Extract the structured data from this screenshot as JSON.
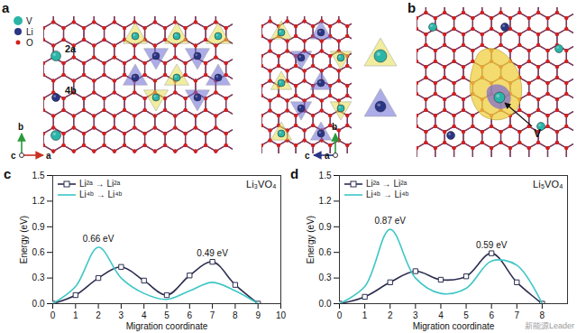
{
  "figure": {
    "panel_a": {
      "label": "a",
      "legend": [
        {
          "text": "V",
          "color": "#2bb5a8"
        },
        {
          "text": "Li",
          "color": "#2a3585"
        },
        {
          "text": "O",
          "color": "#d42020"
        }
      ],
      "site_labels": [
        "2a",
        "4b"
      ],
      "axes_left": {
        "up": "b",
        "side": "a",
        "out": "c"
      },
      "axes_middle": {
        "up": "b",
        "side": "c",
        "out": "a"
      }
    },
    "panel_b": {
      "label": "b",
      "atom_label": "V"
    },
    "watermark": "新能源Leader"
  },
  "chart_data": [
    {
      "type": "line",
      "panel": "c",
      "title": "Li₃VO₄",
      "x_label": "Migration coordinate",
      "y_label": "Energy (eV)",
      "x": [
        0,
        1,
        2,
        3,
        4,
        5,
        6,
        7,
        8,
        9
      ],
      "xlim": [
        0,
        10
      ],
      "xticks": [
        0,
        1,
        2,
        3,
        4,
        5,
        6,
        7,
        8,
        9,
        10
      ],
      "ylim": [
        0,
        1.5
      ],
      "yticks": [
        {
          "value": 0,
          "label": "0.0"
        },
        0.3,
        0.6,
        0.9,
        1.2,
        1.5
      ],
      "legend": "top-left",
      "series": [
        {
          "name": "Li²ᵃ → Li²ᵃ",
          "color": "#2b2d4f",
          "marker": "square",
          "values": [
            0,
            0.1,
            0.3,
            0.43,
            0.27,
            0.1,
            0.33,
            0.49,
            0.22,
            0
          ]
        },
        {
          "name": "Li⁴ᵇ → Li⁴ᵇ",
          "color": "#3ec6c6",
          "marker": "none",
          "values": [
            0,
            0.2,
            0.66,
            0.3,
            0.12,
            0.05,
            0.15,
            0.25,
            0.15,
            0
          ]
        }
      ],
      "annotations": [
        {
          "x": 2,
          "y": 0.66,
          "text": "0.66 eV"
        },
        {
          "x": 7,
          "y": 0.49,
          "text": "0.49 eV"
        }
      ]
    },
    {
      "type": "line",
      "panel": "d",
      "title": "Li₅VO₄",
      "x_label": "Migration coordinate",
      "y_label": "Energy (eV)",
      "x": [
        0,
        1,
        2,
        3,
        4,
        5,
        6,
        7,
        8
      ],
      "xlim": [
        0,
        9
      ],
      "xticks": [
        0,
        1,
        2,
        3,
        4,
        5,
        6,
        7,
        8
      ],
      "ylim": [
        0,
        1.5
      ],
      "yticks": [
        {
          "value": 0,
          "label": "0.0"
        },
        0.3,
        0.6,
        0.9,
        1.2,
        1.5
      ],
      "legend": "top-left",
      "series": [
        {
          "name": "Li²ᵃ → Li²ᵃ",
          "color": "#2b2d4f",
          "marker": "square",
          "values": [
            0,
            0.08,
            0.25,
            0.38,
            0.28,
            0.32,
            0.59,
            0.25,
            0
          ]
        },
        {
          "name": "Li⁴ᵇ → Li⁴ᵇ",
          "color": "#3ec6c6",
          "marker": "none",
          "values": [
            0,
            0.2,
            0.87,
            0.3,
            0.12,
            0.18,
            0.5,
            0.45,
            0
          ]
        }
      ],
      "annotations": [
        {
          "x": 2,
          "y": 0.87,
          "text": "0.87 eV"
        },
        {
          "x": 6,
          "y": 0.59,
          "text": "0.59 eV"
        }
      ]
    }
  ]
}
